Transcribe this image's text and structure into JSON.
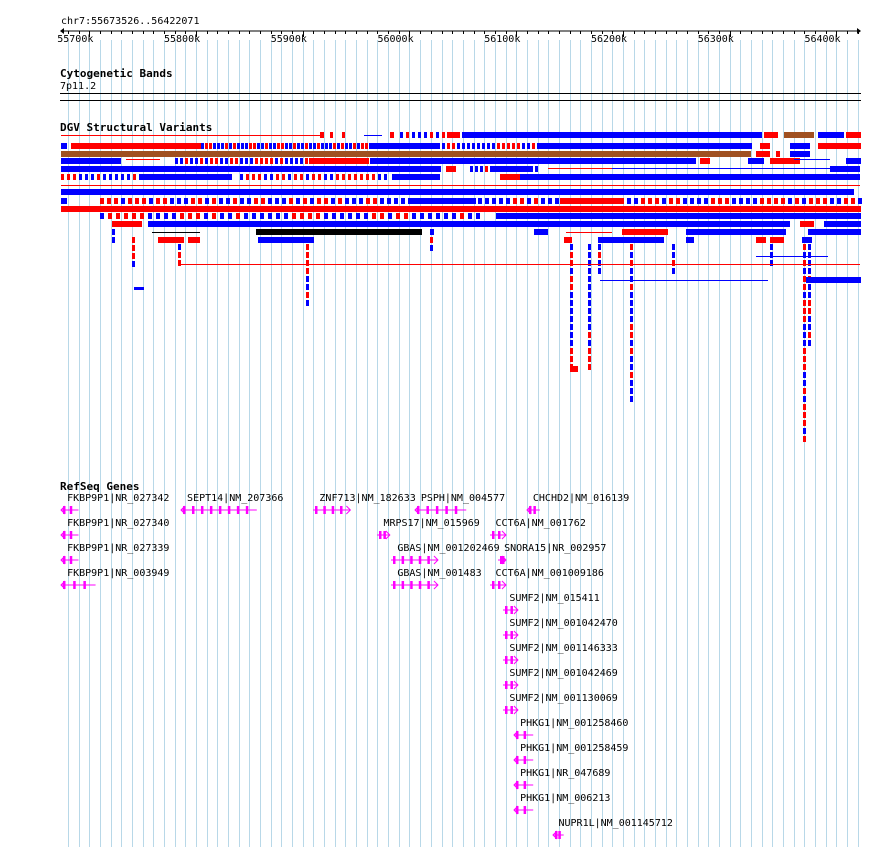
{
  "ruler": {
    "location": "chr7:55673526..56422071",
    "start": 55673526,
    "end": 56422071,
    "ticks": [
      "55700k",
      "55800k",
      "55900k",
      "56000k",
      "56100k",
      "56200k",
      "56300k",
      "56400k"
    ]
  },
  "tracks": {
    "cytobands": {
      "title": "Cytogenetic Bands",
      "band": "7p11.2"
    },
    "dgv": {
      "title": "DGV Structural Variants"
    },
    "refseq": {
      "title": "RefSeq Genes"
    }
  },
  "colors": {
    "grid": "#b8d8e8",
    "variant_red": "#ff0000",
    "variant_blue": "#0000ff",
    "variant_brown": "#a05020",
    "variant_black": "#000000",
    "gene": "#ff00ff"
  },
  "genes": [
    {
      "label": "FKBP9P1|NR_027342",
      "start": 55673600,
      "end": 55690000,
      "strand": "-"
    },
    {
      "label": "SEPT14|NM_207366",
      "start": 55786000,
      "end": 55857000,
      "strand": "-"
    },
    {
      "label": "ZNF713|NM_182633",
      "start": 55910000,
      "end": 55945000,
      "strand": "+"
    },
    {
      "label": "PSPH|NM_004577",
      "start": 56005000,
      "end": 56053000,
      "strand": "-"
    },
    {
      "label": "CHCHD2|NM_016139",
      "start": 56110000,
      "end": 56122000,
      "strand": "-"
    },
    {
      "label": "FKBP9P1|NR_027340",
      "start": 55673600,
      "end": 55690000,
      "strand": "-"
    },
    {
      "label": "MRPS17|NM_015969",
      "start": 55970000,
      "end": 55982000,
      "strand": "+"
    },
    {
      "label": "CCT6A|NM_001762",
      "start": 56075000,
      "end": 56090000,
      "strand": "+"
    },
    {
      "label": "FKBP9P1|NR_027339",
      "start": 55673600,
      "end": 55690000,
      "strand": "-"
    },
    {
      "label": "GBAS|NM_001202469",
      "start": 55983000,
      "end": 56027000,
      "strand": "+"
    },
    {
      "label": "SNORA15|NR_002957",
      "start": 56083000,
      "end": 56087000,
      "strand": "+"
    },
    {
      "label": "FKBP9P1|NR_003949",
      "start": 55673600,
      "end": 55706000,
      "strand": "-"
    },
    {
      "label": "GBAS|NM_001483",
      "start": 55983000,
      "end": 56027000,
      "strand": "+"
    },
    {
      "label": "CCT6A|NM_001009186",
      "start": 56075000,
      "end": 56090000,
      "strand": "+"
    },
    {
      "label": "SUMF2|NM_015411",
      "start": 56088000,
      "end": 56102000,
      "strand": "+"
    },
    {
      "label": "SUMF2|NM_001042470",
      "start": 56088000,
      "end": 56102000,
      "strand": "+"
    },
    {
      "label": "SUMF2|NM_001146333",
      "start": 56088000,
      "end": 56102000,
      "strand": "+"
    },
    {
      "label": "SUMF2|NM_001042469",
      "start": 56088000,
      "end": 56102000,
      "strand": "+"
    },
    {
      "label": "SUMF2|NM_001130069",
      "start": 56088000,
      "end": 56102000,
      "strand": "+"
    },
    {
      "label": "PHKG1|NM_001258460",
      "start": 56098000,
      "end": 56116000,
      "strand": "-"
    },
    {
      "label": "PHKG1|NM_001258459",
      "start": 56098000,
      "end": 56116000,
      "strand": "-"
    },
    {
      "label": "PHKG1|NR_047689",
      "start": 56098000,
      "end": 56116000,
      "strand": "-"
    },
    {
      "label": "PHKG1|NM_006213",
      "start": 56098000,
      "end": 56116000,
      "strand": "-"
    },
    {
      "label": "NUPR1L|NM_001145712",
      "start": 56134000,
      "end": 56144000,
      "strand": "-"
    }
  ]
}
